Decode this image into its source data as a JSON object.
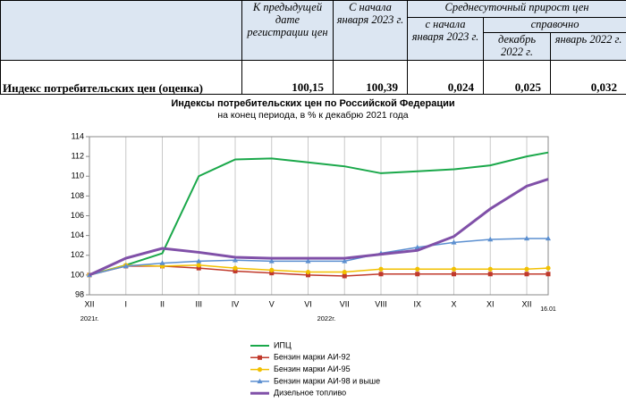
{
  "table": {
    "columns": [
      "К предыдущей дате регистрации цен",
      "С начала января 2023 г."
    ],
    "group": "Среднесуточный прирост цен",
    "group_columns": [
      "с начала января 2023 г."
    ],
    "subgroup": "справочно",
    "subgroup_columns": [
      "декабрь 2022 г.",
      "январь 2022 г."
    ],
    "row": {
      "label": "Индекс потребительских цен (оценка)",
      "values": [
        "100,15",
        "100,39",
        "0,024",
        "0,025",
        "0,032"
      ]
    }
  },
  "chart_data": {
    "type": "line",
    "title": "Индексы потребительских цен по Российской Федерации",
    "subtitle": "на конец периода, в % к декабрю 2021 года",
    "categories": [
      "XII",
      "I",
      "II",
      "III",
      "IV",
      "V",
      "VI",
      "VII",
      "VIII",
      "IX",
      "X",
      "XI",
      "XII",
      "16.01"
    ],
    "year_labels": [
      "2021г.",
      "2022г."
    ],
    "ylim": [
      98,
      114
    ],
    "yticks": [
      98,
      100,
      102,
      104,
      106,
      108,
      110,
      112,
      114
    ],
    "grid": "vertical",
    "series": [
      {
        "name": "ИПЦ",
        "color": "#1aa84a",
        "marker": null,
        "line_width": 2,
        "values": [
          100,
          101,
          102.2,
          110,
          111.7,
          111.8,
          111.4,
          111,
          110.3,
          110.5,
          110.7,
          111.1,
          112,
          112.4
        ]
      },
      {
        "name": "Бензин марки АИ-92",
        "color": "#c0392b",
        "marker": "square",
        "line_width": 1.5,
        "values": [
          100,
          100.9,
          100.9,
          100.7,
          100.4,
          100.2,
          100,
          99.9,
          100.1,
          100.1,
          100.1,
          100.1,
          100.1,
          100.1
        ]
      },
      {
        "name": "Бензин марки АИ-95",
        "color": "#f2c000",
        "marker": "circle",
        "line_width": 1.5,
        "values": [
          100,
          101,
          100.9,
          101,
          100.7,
          100.5,
          100.3,
          100.3,
          100.6,
          100.6,
          100.6,
          100.6,
          100.6,
          100.7
        ]
      },
      {
        "name": "Бензин марки АИ-98 и выше",
        "color": "#5b8fd0",
        "marker": "triangle",
        "line_width": 1.5,
        "values": [
          100,
          100.9,
          101.2,
          101.4,
          101.5,
          101.4,
          101.4,
          101.4,
          102.2,
          102.8,
          103.3,
          103.6,
          103.7,
          103.7
        ]
      },
      {
        "name": "Дизельное топливо",
        "color": "#8050a8",
        "marker": null,
        "line_width": 3,
        "values": [
          100,
          101.7,
          102.7,
          102.3,
          101.8,
          101.7,
          101.7,
          101.7,
          102.1,
          102.5,
          103.9,
          106.7,
          109,
          109.7
        ]
      }
    ]
  }
}
